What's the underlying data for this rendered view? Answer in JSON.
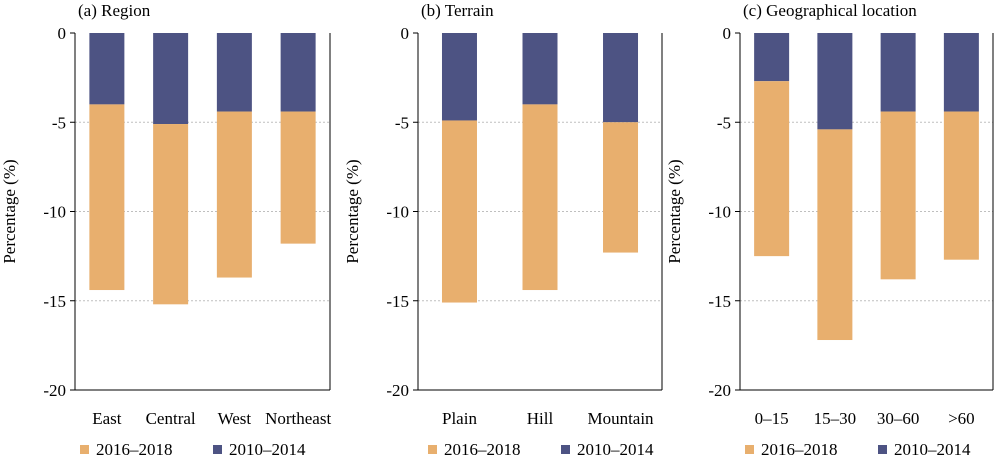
{
  "colors": {
    "period_2016_2018": "#E8AF6E",
    "period_2010_2014": "#4D5383",
    "grid": "#BFBFBF"
  },
  "chart_data": [
    {
      "type": "bar",
      "stacked": true,
      "title": "(a) Region",
      "ylabel": "Percentage (%)",
      "ylim": [
        -20,
        0
      ],
      "yticks": [
        0,
        -5,
        -10,
        -15,
        -20
      ],
      "grid": "horizontal dotted",
      "legend_position": "bottom",
      "categories": [
        "East",
        "Central",
        "West",
        "Northeast"
      ],
      "series": [
        {
          "name": "2016–2018",
          "values": [
            -10.4,
            -10.1,
            -9.3,
            -7.4
          ]
        },
        {
          "name": "2010–2014",
          "values": [
            -4.0,
            -5.1,
            -4.4,
            -4.4
          ]
        }
      ]
    },
    {
      "type": "bar",
      "stacked": true,
      "title": "(b) Terrain",
      "ylabel": "Percentage (%)",
      "ylim": [
        -20,
        0
      ],
      "yticks": [
        0,
        -5,
        -10,
        -15,
        -20
      ],
      "grid": "horizontal dotted",
      "legend_position": "bottom",
      "categories": [
        "Plain",
        "Hill",
        "Mountain"
      ],
      "series": [
        {
          "name": "2016–2018",
          "values": [
            -10.2,
            -10.4,
            -7.3
          ]
        },
        {
          "name": "2010–2014",
          "values": [
            -4.9,
            -4.0,
            -5.0
          ]
        }
      ]
    },
    {
      "type": "bar",
      "stacked": true,
      "title": "(c) Geographical location",
      "ylabel": "Percentage (%)",
      "ylim": [
        -20,
        0
      ],
      "yticks": [
        0,
        -5,
        -10,
        -15,
        -20
      ],
      "grid": "horizontal dotted",
      "legend_position": "bottom",
      "categories": [
        "0–15",
        "15–30",
        "30–60",
        ">60"
      ],
      "series": [
        {
          "name": "2016–2018",
          "values": [
            -9.8,
            -11.8,
            -9.4,
            -8.3
          ]
        },
        {
          "name": "2010–2014",
          "values": [
            -2.7,
            -5.4,
            -4.4,
            -4.4
          ]
        }
      ]
    }
  ]
}
